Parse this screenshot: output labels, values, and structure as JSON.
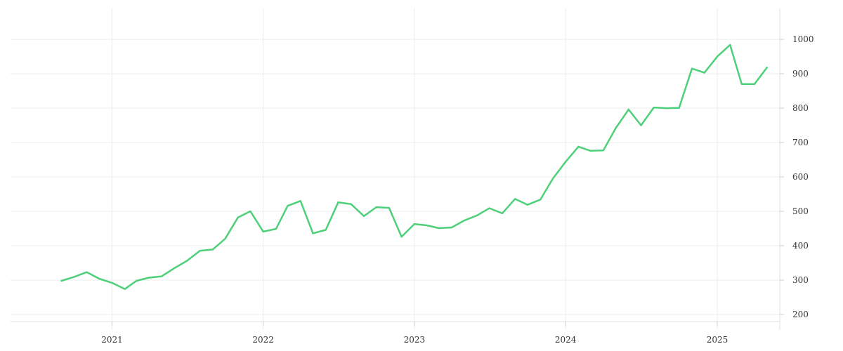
{
  "chart_data": {
    "type": "line",
    "title": "",
    "xlabel": "",
    "ylabel": "",
    "x_ticks": [
      "2021",
      "2022",
      "2023",
      "2024",
      "2025"
    ],
    "y_ticks": [
      200,
      300,
      400,
      500,
      600,
      700,
      800,
      900,
      1000
    ],
    "xlim": [
      "2020-05-01",
      "2025-06-01"
    ],
    "ylim": [
      155,
      1090
    ],
    "grid": true,
    "legend": "none",
    "y_axis_side": "right",
    "line_color": "#4ed07a",
    "series": [
      {
        "x": [
          "2020-09-01",
          "2020-10-01",
          "2020-11-01",
          "2020-12-01",
          "2021-01-01",
          "2021-02-01",
          "2021-03-01",
          "2021-04-01",
          "2021-05-01",
          "2021-06-01",
          "2021-07-01",
          "2021-08-01",
          "2021-09-01",
          "2021-10-01",
          "2021-11-01",
          "2021-12-01",
          "2022-01-01",
          "2022-02-01",
          "2022-03-01",
          "2022-04-01",
          "2022-05-01",
          "2022-06-01",
          "2022-07-01",
          "2022-08-01",
          "2022-09-01",
          "2022-10-01",
          "2022-11-01",
          "2022-12-01",
          "2023-01-01",
          "2023-02-01",
          "2023-03-01",
          "2023-04-01",
          "2023-05-01",
          "2023-06-01",
          "2023-07-01",
          "2023-08-01",
          "2023-09-01",
          "2023-10-01",
          "2023-11-01",
          "2023-12-01",
          "2024-01-01",
          "2024-02-01",
          "2024-03-01",
          "2024-04-01",
          "2024-05-01",
          "2024-06-01",
          "2024-07-01",
          "2024-08-01",
          "2024-09-01",
          "2024-10-01",
          "2024-11-01",
          "2024-12-01",
          "2025-01-01",
          "2025-02-01",
          "2025-03-01",
          "2025-04-01",
          "2025-05-01"
        ],
        "y": [
          298,
          309,
          323,
          304,
          292,
          274,
          298,
          307,
          311,
          335,
          356,
          385,
          389,
          420,
          482,
          500,
          441,
          449,
          516,
          530,
          436,
          446,
          526,
          521,
          486,
          512,
          510,
          426,
          463,
          459,
          451,
          453,
          473,
          488,
          509,
          494,
          536,
          519,
          534,
          595,
          644,
          688,
          676,
          677,
          742,
          796,
          750,
          802,
          800,
          801,
          915,
          903,
          950,
          984,
          870,
          870,
          918
        ]
      }
    ]
  }
}
